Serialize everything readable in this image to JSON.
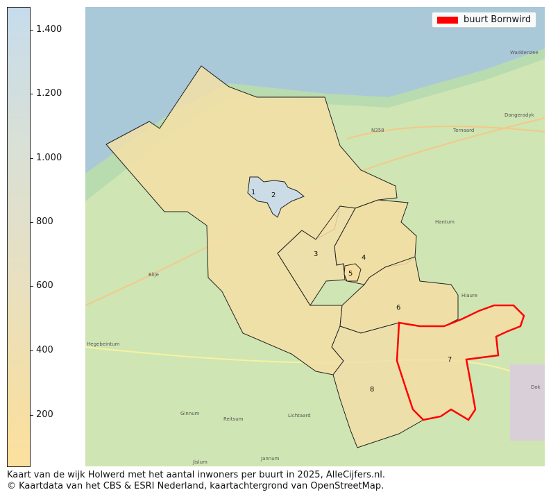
{
  "colorbar": {
    "ticks": [
      "1.400",
      "1.200",
      "1.000",
      "800",
      "600",
      "400",
      "200"
    ],
    "range": [
      40,
      1470
    ],
    "color_low": "#fde09e",
    "color_high": "#c6dcec"
  },
  "legend": {
    "label": "buurt Bornwird",
    "color": "#ff0000"
  },
  "map": {
    "buurt_numbers": [
      "1",
      "2",
      "3",
      "4",
      "5",
      "6",
      "7",
      "8"
    ],
    "place_labels": [
      "Blije",
      "Hegebeintum",
      "Ginnum",
      "Reitsum",
      "Jislum",
      "Jannum",
      "Lichtaard",
      "Ternaard",
      "Hantum",
      "Hiaure",
      "Dok",
      "Waddenzee",
      "N358",
      "Dongeradyk"
    ]
  },
  "caption": {
    "line1": "Kaart van de wijk Holwerd met het aantal inwoners per buurt in 2025, AlleCijfers.nl.",
    "line2": "© Kaartdata van het CBS & ESRI Nederland, kaartachtergrond van OpenStreetMap."
  }
}
